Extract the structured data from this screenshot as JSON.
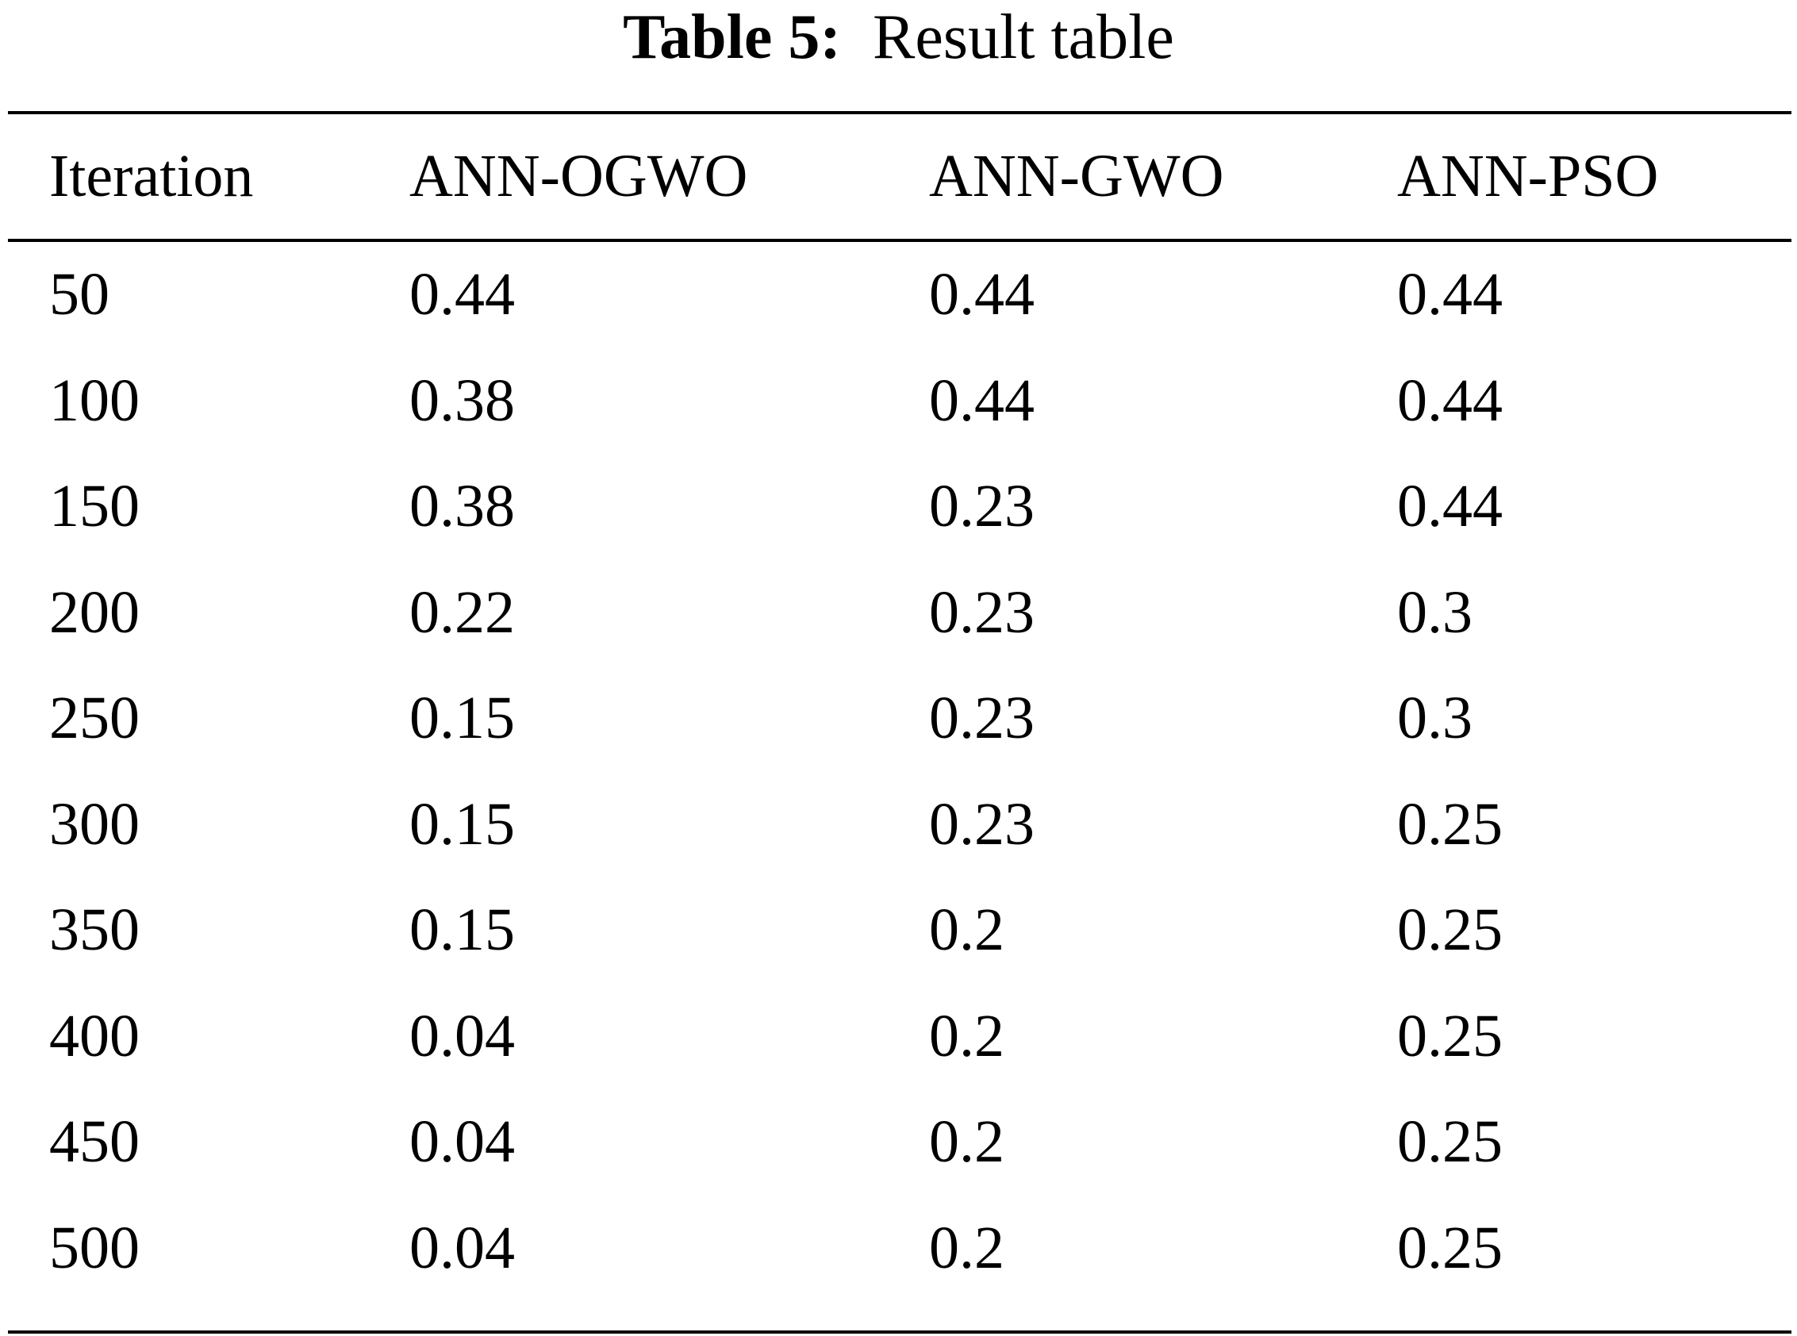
{
  "caption": {
    "label": "Table 5:",
    "text": "Result table"
  },
  "table": {
    "headers": [
      "Iteration",
      "ANN-OGWO",
      "ANN-GWO",
      "ANN-PSO"
    ],
    "rows": [
      [
        "50",
        "0.44",
        "0.44",
        "0.44"
      ],
      [
        "100",
        "0.38",
        "0.44",
        "0.44"
      ],
      [
        "150",
        "0.38",
        "0.23",
        "0.44"
      ],
      [
        "200",
        "0.22",
        "0.23",
        "0.3"
      ],
      [
        "250",
        "0.15",
        "0.23",
        "0.3"
      ],
      [
        "300",
        "0.15",
        "0.23",
        "0.25"
      ],
      [
        "350",
        "0.15",
        "0.2",
        "0.25"
      ],
      [
        "400",
        "0.04",
        "0.2",
        "0.25"
      ],
      [
        "450",
        "0.04",
        "0.2",
        "0.25"
      ],
      [
        "500",
        "0.04",
        "0.2",
        "0.25"
      ]
    ]
  }
}
